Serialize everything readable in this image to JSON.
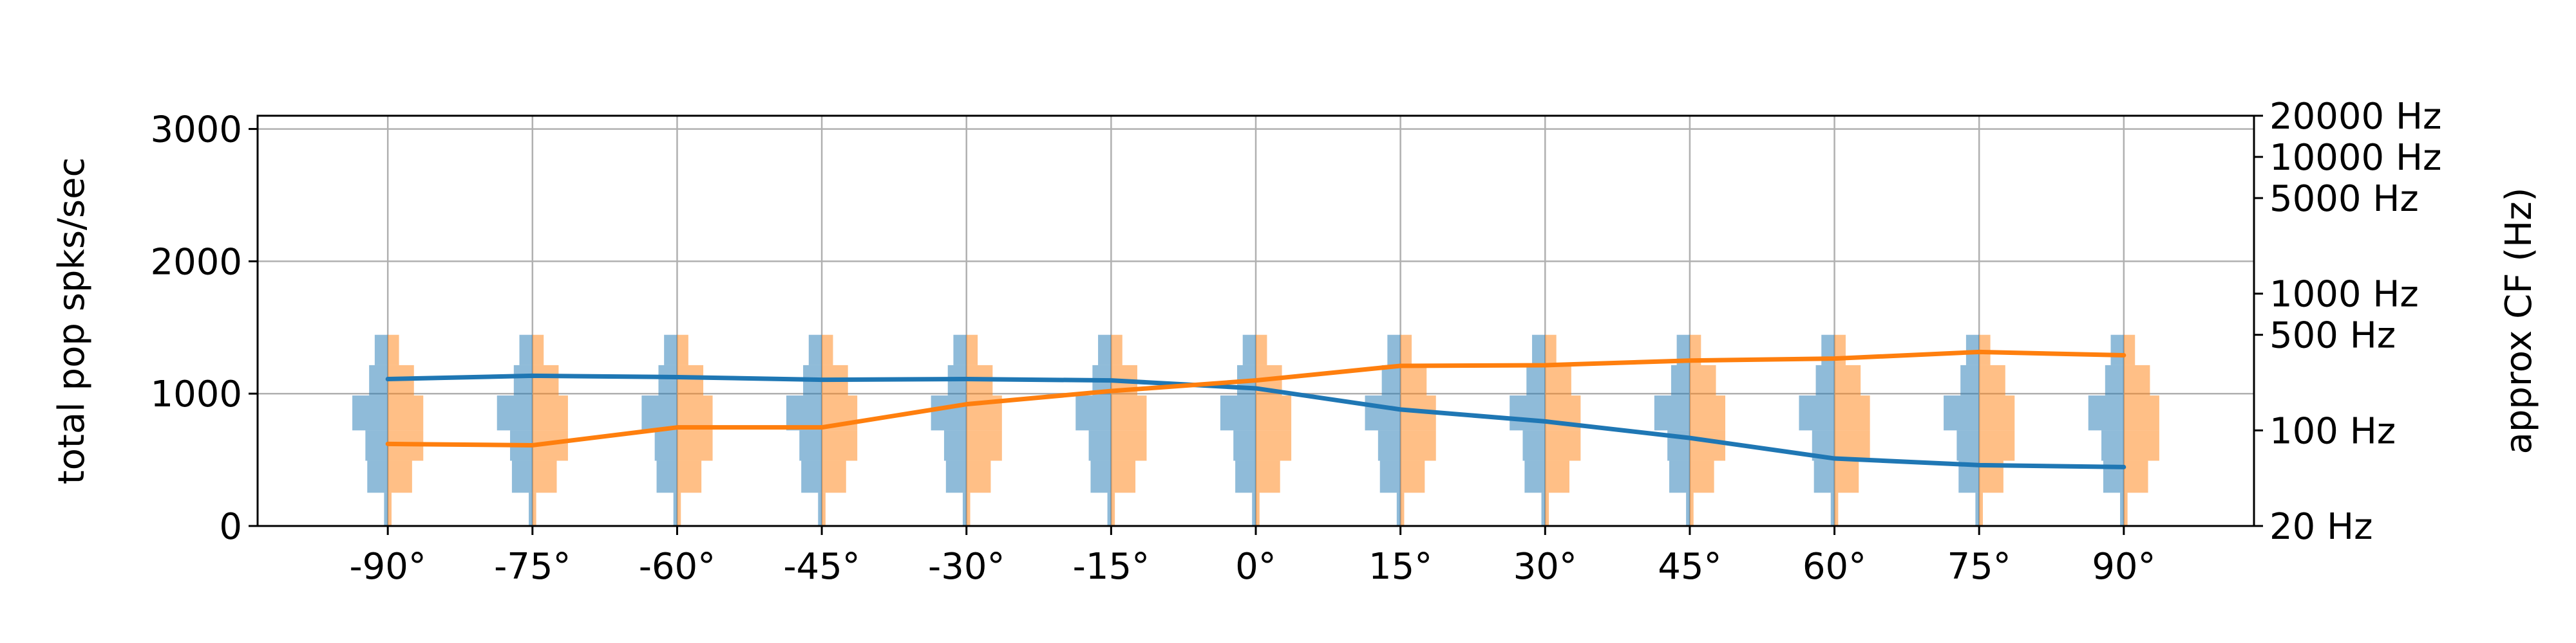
{
  "chart_data": {
    "type": "line",
    "title": "",
    "xlabel": "",
    "ylabel": "total pop spks/sec",
    "y2label": "approx CF (Hz)",
    "categories": [
      "-90°",
      "-75°",
      "-60°",
      "-45°",
      "-30°",
      "-15°",
      "0°",
      "15°",
      "30°",
      "45°",
      "60°",
      "75°",
      "90°"
    ],
    "x": [
      -90,
      -75,
      -60,
      -45,
      -30,
      -15,
      0,
      15,
      30,
      45,
      60,
      75,
      90
    ],
    "xlim": [
      -103.5,
      103.5
    ],
    "ylim": [
      0,
      3100
    ],
    "yticks": [
      0,
      1000,
      2000,
      3000
    ],
    "y2ticks": [
      "20 Hz",
      "100 Hz",
      "500 Hz",
      "1000 Hz",
      "5000 Hz",
      "10000 Hz",
      "20000 Hz"
    ],
    "y2tick_values": [
      20,
      100,
      500,
      1000,
      5000,
      10000,
      20000
    ],
    "grid": true,
    "series": [
      {
        "color": "#1f77b4",
        "values": [
          1110,
          1135,
          1125,
          1105,
          1110,
          1100,
          1040,
          880,
          790,
          665,
          510,
          460,
          445
        ]
      },
      {
        "color": "#ff7f0e",
        "values": [
          620,
          610,
          745,
          745,
          920,
          1020,
          1100,
          1210,
          1215,
          1250,
          1265,
          1315,
          1290
        ]
      }
    ],
    "cf_distribution": {
      "left_color": "#1f77b4",
      "right_color": "#ff7f0e",
      "opacity": 0.5,
      "freq_bin_edges_hz": [
        20,
        35,
        60,
        100,
        180,
        300,
        500
      ],
      "left_counts": [
        0.1,
        0.55,
        0.6,
        0.95,
        0.5,
        0.35
      ],
      "right_counts": [
        0.1,
        0.65,
        0.95,
        0.95,
        0.7,
        0.3
      ]
    }
  }
}
